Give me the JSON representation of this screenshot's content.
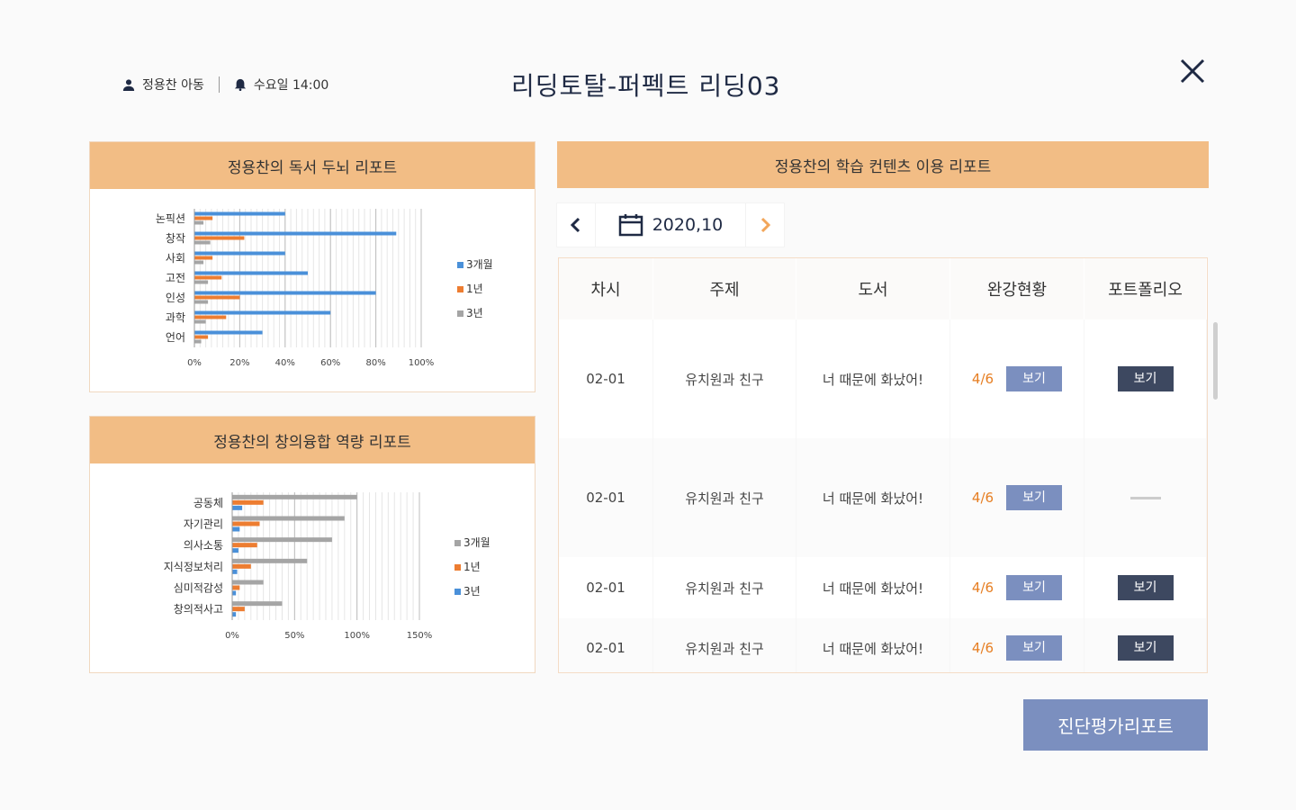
{
  "header": {
    "student": "정용찬 아동",
    "schedule": "수요일 14:00",
    "title": "리딩토탈-퍼펙트 리딩03"
  },
  "reading_report": {
    "title": "정용찬의 독서 두뇌 리포트",
    "chart_data": {
      "type": "bar",
      "orientation": "horizontal",
      "categories": [
        "논픽션",
        "창작",
        "사회",
        "고전",
        "인성",
        "과학",
        "언어"
      ],
      "series": [
        {
          "name": "3개월",
          "color": "#4a90d9",
          "values": [
            40,
            89,
            40,
            50,
            80,
            60,
            30
          ]
        },
        {
          "name": "1년",
          "color": "#ed7d31",
          "values": [
            8,
            22,
            8,
            12,
            20,
            14,
            6
          ]
        },
        {
          "name": "3년",
          "color": "#a5a5a5",
          "values": [
            4,
            7,
            4,
            6,
            6,
            5,
            3
          ]
        }
      ],
      "x_ticks": [
        "0%",
        "20%",
        "40%",
        "60%",
        "80%",
        "100%"
      ],
      "xlim": [
        0,
        100
      ],
      "legend": "right"
    }
  },
  "creative_report": {
    "title": "정용찬의 창의융합 역량 리포트",
    "chart_data": {
      "type": "bar",
      "orientation": "horizontal",
      "categories": [
        "공동체",
        "자기관리",
        "의사소통",
        "지식정보처리",
        "심미적감성",
        "창의적사고"
      ],
      "series": [
        {
          "name": "3개월",
          "color": "#a5a5a5",
          "values": [
            100,
            90,
            80,
            60,
            25,
            40
          ]
        },
        {
          "name": "1년",
          "color": "#ed7d31",
          "values": [
            25,
            22,
            20,
            15,
            6,
            10
          ]
        },
        {
          "name": "3년",
          "color": "#4a90d9",
          "values": [
            8,
            6,
            5,
            4,
            3,
            3
          ]
        }
      ],
      "x_ticks": [
        "0%",
        "50%",
        "100%",
        "150%"
      ],
      "xlim": [
        0,
        150
      ],
      "legend": "right"
    }
  },
  "content_report": {
    "title": "정용찬의 학습 컨텐츠 이용 리포트",
    "month": "2020,10",
    "columns": [
      "차시",
      "주제",
      "도서",
      "완강현황",
      "포트폴리오"
    ],
    "view_label": "보기",
    "rows": [
      {
        "session": "02-01",
        "topic": "유치원과 친구",
        "book": "너 때문에 화났어!",
        "progress": "4/6",
        "portfolio": true
      },
      {
        "session": "02-01",
        "topic": "유치원과 친구",
        "book": "너 때문에 화났어!",
        "progress": "4/6",
        "portfolio": false
      },
      {
        "session": "02-01",
        "topic": "유치원과 친구",
        "book": "너 때문에 화났어!",
        "progress": "4/6",
        "portfolio": true
      },
      {
        "session": "02-01",
        "topic": "유치원과 친구",
        "book": "너 때문에 화났어!",
        "progress": "4/6",
        "portfolio": true
      }
    ]
  },
  "diagnosis_button": "진단평가리포트",
  "colors": {
    "accent_header": "#f2bd85",
    "button_blue": "#7b8fbf",
    "button_dark": "#3d4860",
    "progress_orange": "#e67e22"
  }
}
